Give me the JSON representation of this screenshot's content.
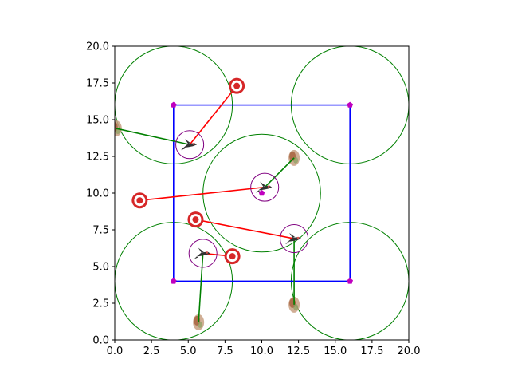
{
  "chart_data": {
    "type": "scatter",
    "title": "",
    "xlabel": "",
    "ylabel": "",
    "xlim": [
      0,
      20
    ],
    "ylim": [
      0,
      20
    ],
    "x_ticks": [
      {
        "value": 0,
        "label": "0.0"
      },
      {
        "value": 2.5,
        "label": "2.5"
      },
      {
        "value": 5,
        "label": "5.0"
      },
      {
        "value": 7.5,
        "label": "7.5"
      },
      {
        "value": 10,
        "label": "10.0"
      },
      {
        "value": 12.5,
        "label": "12.5"
      },
      {
        "value": 15,
        "label": "15.0"
      },
      {
        "value": 17.5,
        "label": "17.5"
      },
      {
        "value": 20,
        "label": "20.0"
      }
    ],
    "y_ticks": [
      {
        "value": 0,
        "label": "0.0"
      },
      {
        "value": 2.5,
        "label": "2.5"
      },
      {
        "value": 5,
        "label": "5.0"
      },
      {
        "value": 7.5,
        "label": "7.5"
      },
      {
        "value": 10,
        "label": "10.0"
      },
      {
        "value": 12.5,
        "label": "12.5"
      },
      {
        "value": 15,
        "label": "15.0"
      },
      {
        "value": 17.5,
        "label": "17.5"
      },
      {
        "value": 20,
        "label": "20.0"
      }
    ],
    "grid": false,
    "colors": {
      "axes": "#000000",
      "boundary": "#0000ff",
      "corner_marker": "#bf00bf",
      "region_circle": "#008000",
      "hunter_circle": "#800080",
      "target": "#d62728",
      "red_link": "#ff0000",
      "green_link": "#008000",
      "bird": "#333333",
      "bird_accent": "#d9534f",
      "flower": "#a0522d",
      "flower_light": "#c8a082"
    },
    "boundary_square": {
      "x_range": [
        4,
        16
      ],
      "y_range": [
        4,
        16
      ]
    },
    "corner_markers": [
      [
        4,
        16
      ],
      [
        16,
        16
      ],
      [
        4,
        4
      ],
      [
        16,
        4
      ]
    ],
    "center_marker": [
      10,
      10
    ],
    "region_circles": [
      {
        "center": [
          4,
          16
        ],
        "radius": 4
      },
      {
        "center": [
          16,
          16
        ],
        "radius": 4
      },
      {
        "center": [
          10,
          10
        ],
        "radius": 4
      },
      {
        "center": [
          4,
          4
        ],
        "radius": 4
      },
      {
        "center": [
          16,
          4
        ],
        "radius": 4
      }
    ],
    "hunters": [
      {
        "pos": [
          5.1,
          13.3
        ],
        "radius": 0.95
      },
      {
        "pos": [
          10.2,
          10.4
        ],
        "radius": 0.95
      },
      {
        "pos": [
          12.2,
          6.9
        ],
        "radius": 0.95
      },
      {
        "pos": [
          6.0,
          5.9
        ],
        "radius": 0.95
      }
    ],
    "targets": [
      [
        8.3,
        17.3
      ],
      [
        1.7,
        9.5
      ],
      [
        5.5,
        8.2
      ],
      [
        8.0,
        5.7
      ]
    ],
    "flowers": [
      [
        0.1,
        14.4
      ],
      [
        12.2,
        12.4
      ],
      [
        12.2,
        2.4
      ],
      [
        5.7,
        1.2
      ]
    ],
    "red_links": [
      {
        "from": [
          8.3,
          17.3
        ],
        "to": [
          5.1,
          13.3
        ]
      },
      {
        "from": [
          1.7,
          9.5
        ],
        "to": [
          10.2,
          10.4
        ]
      },
      {
        "from": [
          5.5,
          8.2
        ],
        "to": [
          12.2,
          6.9
        ]
      },
      {
        "from": [
          8.0,
          5.7
        ],
        "to": [
          6.0,
          5.9
        ]
      }
    ],
    "green_links": [
      {
        "from": [
          0.1,
          14.4
        ],
        "to": [
          5.1,
          13.3
        ]
      },
      {
        "from": [
          12.2,
          12.4
        ],
        "to": [
          10.2,
          10.4
        ]
      },
      {
        "from": [
          12.2,
          2.4
        ],
        "to": [
          12.2,
          6.9
        ]
      },
      {
        "from": [
          5.7,
          1.2
        ],
        "to": [
          6.0,
          5.9
        ]
      }
    ]
  }
}
